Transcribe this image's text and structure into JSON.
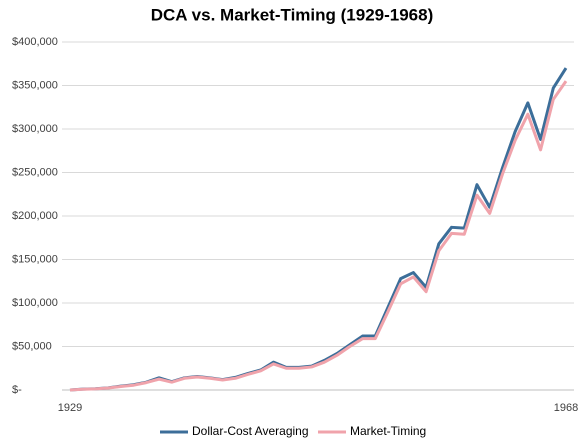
{
  "chart_data": {
    "type": "line",
    "title": "DCA vs. Market-Timing (1929-1968)",
    "categories": [
      "1929",
      null,
      null,
      null,
      null,
      null,
      null,
      null,
      null,
      null,
      null,
      null,
      null,
      null,
      null,
      null,
      null,
      null,
      null,
      null,
      null,
      null,
      null,
      null,
      null,
      null,
      null,
      null,
      null,
      null,
      null,
      null,
      null,
      null,
      null,
      null,
      null,
      null,
      null,
      "1968"
    ],
    "series": [
      {
        "name": "Dollar-Cost Averaging",
        "color": "#3c6e99",
        "values": [
          0,
          1000,
          1500,
          2500,
          4500,
          6000,
          9000,
          14000,
          9500,
          14000,
          15500,
          14000,
          12000,
          14500,
          19000,
          23000,
          32000,
          26000,
          26000,
          27500,
          34000,
          42000,
          52000,
          62000,
          62000,
          95000,
          128000,
          135000,
          118000,
          168000,
          187000,
          186000,
          236000,
          210000,
          255000,
          297000,
          330000,
          288000,
          347000,
          370000
        ]
      },
      {
        "name": "Market-Timing",
        "color": "#f0a3ab",
        "values": [
          0,
          800,
          1300,
          2300,
          4000,
          5500,
          8500,
          12500,
          9000,
          13500,
          15000,
          13500,
          11500,
          13500,
          18000,
          22000,
          30000,
          25000,
          25000,
          26500,
          32000,
          40000,
          50000,
          59000,
          59000,
          90000,
          122000,
          130000,
          113000,
          160000,
          180000,
          179000,
          224000,
          203000,
          248000,
          287000,
          317000,
          276000,
          334000,
          355000
        ]
      }
    ],
    "ylim": [
      0,
      400000
    ],
    "yticks": [
      {
        "value": 0,
        "label": "$-"
      },
      {
        "value": 50000,
        "label": "$50,000"
      },
      {
        "value": 100000,
        "label": "$100,000"
      },
      {
        "value": 150000,
        "label": "$150,000"
      },
      {
        "value": 200000,
        "label": "$200,000"
      },
      {
        "value": 250000,
        "label": "$250,000"
      },
      {
        "value": 300000,
        "label": "$300,000"
      },
      {
        "value": 350000,
        "label": "$350,000"
      },
      {
        "value": 400000,
        "label": "$400,000"
      }
    ],
    "grid": true,
    "legend": "bottom"
  }
}
